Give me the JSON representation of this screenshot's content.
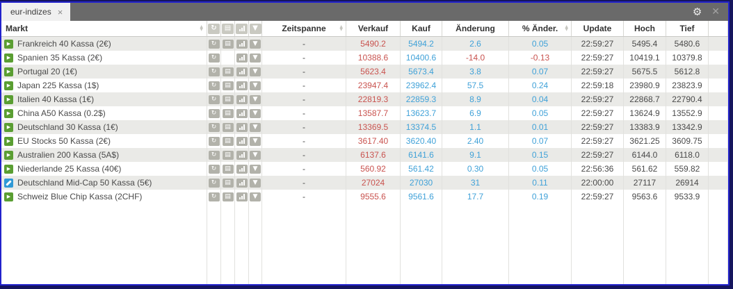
{
  "titlebar": {
    "tab": "eur-indizes"
  },
  "icons": {
    "tab_close": "×",
    "gear": "⚙",
    "window_close": "✕",
    "sort_up": "▲",
    "sort_down": "▼",
    "refresh": "↻",
    "news": "▤",
    "chart": "bar-chart",
    "menu": "▼",
    "play": "▶"
  },
  "colors": {
    "accent_border": "#2222cc",
    "titlebar_bg": "#6a6a6a",
    "sell_red": "#c9534f",
    "buy_blue": "#3fa1d8",
    "row_alt": "#eaeae7",
    "green_status": "#5a9e32",
    "edit_status": "#2f99d6",
    "text": "#4a4a4a"
  },
  "table": {
    "columns": {
      "markt": "Markt",
      "zeitspanne": "Zeitspanne",
      "verkauf": "Verkauf",
      "kauf": "Kauf",
      "aenderung": "Änderung",
      "pct": "% Änder.",
      "update": "Update",
      "hoch": "Hoch",
      "tief": "Tief"
    },
    "rows": [
      {
        "name": "Frankreich 40 Kassa (2€)",
        "status": "open",
        "icons": {
          "refresh": true,
          "news": true,
          "chart": true,
          "menu": true
        },
        "zeitspanne": "-",
        "verkauf": "5490.2",
        "kauf": "5494.2",
        "aenderung": "2.6",
        "pct": "0.05",
        "update": "22:59:27",
        "hoch": "5495.4",
        "tief": "5480.6"
      },
      {
        "name": "Spanien 35 Kassa (2€)",
        "status": "open",
        "icons": {
          "refresh": true,
          "news": false,
          "chart": true,
          "menu": true
        },
        "zeitspanne": "-",
        "verkauf": "10388.6",
        "kauf": "10400.6",
        "aenderung": "-14.0",
        "pct": "-0.13",
        "update": "22:59:27",
        "hoch": "10419.1",
        "tief": "10379.8"
      },
      {
        "name": "Portugal 20 (1€)",
        "status": "open",
        "icons": {
          "refresh": true,
          "news": true,
          "chart": true,
          "menu": true
        },
        "zeitspanne": "-",
        "verkauf": "5623.4",
        "kauf": "5673.4",
        "aenderung": "3.8",
        "pct": "0.07",
        "update": "22:59:27",
        "hoch": "5675.5",
        "tief": "5612.8"
      },
      {
        "name": "Japan 225 Kassa (1$)",
        "status": "open",
        "icons": {
          "refresh": true,
          "news": true,
          "chart": true,
          "menu": true
        },
        "zeitspanne": "-",
        "verkauf": "23947.4",
        "kauf": "23962.4",
        "aenderung": "57.5",
        "pct": "0.24",
        "update": "22:59:18",
        "hoch": "23980.9",
        "tief": "23823.9"
      },
      {
        "name": "Italien 40 Kassa (1€)",
        "status": "open",
        "icons": {
          "refresh": true,
          "news": true,
          "chart": true,
          "menu": true
        },
        "zeitspanne": "-",
        "verkauf": "22819.3",
        "kauf": "22859.3",
        "aenderung": "8.9",
        "pct": "0.04",
        "update": "22:59:27",
        "hoch": "22868.7",
        "tief": "22790.4"
      },
      {
        "name": "China A50 Kassa (0.2$)",
        "status": "open",
        "icons": {
          "refresh": true,
          "news": true,
          "chart": true,
          "menu": true
        },
        "zeitspanne": "-",
        "verkauf": "13587.7",
        "kauf": "13623.7",
        "aenderung": "6.9",
        "pct": "0.05",
        "update": "22:59:27",
        "hoch": "13624.9",
        "tief": "13552.9"
      },
      {
        "name": "Deutschland 30 Kassa (1€)",
        "status": "open",
        "icons": {
          "refresh": true,
          "news": true,
          "chart": true,
          "menu": true
        },
        "zeitspanne": "-",
        "verkauf": "13369.5",
        "kauf": "13374.5",
        "aenderung": "1.1",
        "pct": "0.01",
        "update": "22:59:27",
        "hoch": "13383.9",
        "tief": "13342.9"
      },
      {
        "name": "EU Stocks 50 Kassa (2€)",
        "status": "open",
        "icons": {
          "refresh": true,
          "news": true,
          "chart": true,
          "menu": true
        },
        "zeitspanne": "-",
        "verkauf": "3617.40",
        "kauf": "3620.40",
        "aenderung": "2.40",
        "pct": "0.07",
        "update": "22:59:27",
        "hoch": "3621.25",
        "tief": "3609.75"
      },
      {
        "name": "Australien 200 Kassa (5A$)",
        "status": "open",
        "icons": {
          "refresh": true,
          "news": true,
          "chart": true,
          "menu": true
        },
        "zeitspanne": "-",
        "verkauf": "6137.6",
        "kauf": "6141.6",
        "aenderung": "9.1",
        "pct": "0.15",
        "update": "22:59:27",
        "hoch": "6144.0",
        "tief": "6118.0"
      },
      {
        "name": "Niederlande 25 Kassa (40€)",
        "status": "open",
        "icons": {
          "refresh": true,
          "news": true,
          "chart": true,
          "menu": true
        },
        "zeitspanne": "-",
        "verkauf": "560.92",
        "kauf": "561.42",
        "aenderung": "0.30",
        "pct": "0.05",
        "update": "22:56:36",
        "hoch": "561.62",
        "tief": "559.82"
      },
      {
        "name": "Deutschland Mid-Cap 50 Kassa (5€)",
        "status": "edit",
        "icons": {
          "refresh": true,
          "news": true,
          "chart": true,
          "menu": true
        },
        "zeitspanne": "-",
        "verkauf": "27024",
        "kauf": "27030",
        "aenderung": "31",
        "pct": "0.11",
        "update": "22:00:00",
        "hoch": "27117",
        "tief": "26914"
      },
      {
        "name": "Schweiz Blue Chip Kassa (2CHF)",
        "status": "open",
        "icons": {
          "refresh": true,
          "news": true,
          "chart": true,
          "menu": true
        },
        "zeitspanne": "-",
        "verkauf": "9555.6",
        "kauf": "9561.6",
        "aenderung": "17.7",
        "pct": "0.19",
        "update": "22:59:27",
        "hoch": "9563.6",
        "tief": "9533.9"
      }
    ]
  }
}
